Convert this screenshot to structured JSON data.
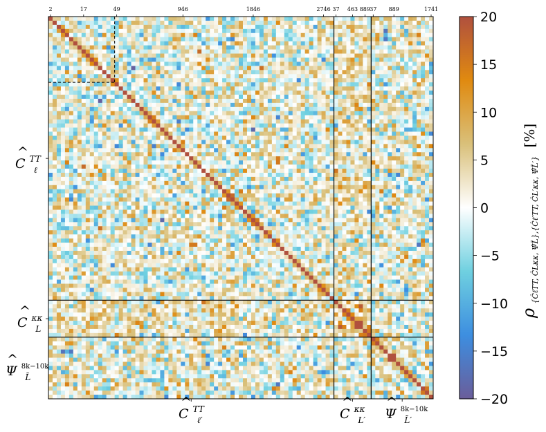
{
  "chart_data": {
    "type": "heatmap",
    "description_title": "",
    "top_ticks": [
      {
        "block": 0,
        "index": 0,
        "label": "2"
      },
      {
        "block": 0,
        "index": 8,
        "label": "17"
      },
      {
        "block": 0,
        "index": 16,
        "label": "49"
      },
      {
        "block": 0,
        "index": 32,
        "label": "946"
      },
      {
        "block": 0,
        "index": 49,
        "label": "1846"
      },
      {
        "block": 0,
        "index": 66,
        "label": "2746"
      },
      {
        "block": 1,
        "index": 0,
        "label": "37"
      },
      {
        "block": 1,
        "index": 4,
        "label": "463"
      },
      {
        "block": 1,
        "index": 7,
        "label": "889"
      },
      {
        "block": 2,
        "index": 0,
        "label": "37"
      },
      {
        "block": 2,
        "index": 5,
        "label": "889"
      },
      {
        "block": 2,
        "index": 14,
        "label": "1741"
      }
    ],
    "blocks": [
      {
        "name": "TT",
        "size": 69,
        "row_label": "Ĉℓ^TT",
        "col_label": "Ĉℓ′^TT"
      },
      {
        "name": "kk",
        "size": 9,
        "row_label": "ĈL^κκ",
        "col_label": "ĈL′^κκ"
      },
      {
        "name": "psi",
        "size": 15,
        "row_label": "Ψ̂L̃^8k−10k",
        "col_label": "Ψ̂L̃′^8k−10k"
      }
    ],
    "diagonal_value": 20,
    "colorbar": {
      "min": -20,
      "max": 20,
      "ticks": [
        "20",
        "15",
        "10",
        "5",
        "0",
        "−5",
        "−10",
        "−15",
        "−20"
      ],
      "label": "ρ{ĈℓTT, ĈLκκ, Ψ̂L̃},{Ĉℓ′TT, ĈL′κκ, Ψ̂L̃′} [%]",
      "unit": "[%]",
      "stops": [
        "#6a5d9a",
        "#3d8ee0",
        "#6fd0e0",
        "#ffffff",
        "#d9c07a",
        "#e08a10",
        "#b0503e"
      ]
    },
    "dashed_box_index": 16,
    "row_labels": {
      "tt": {
        "base": "C",
        "sup": "TT",
        "sub": "ℓ"
      },
      "kk": {
        "base": "C",
        "sup": "κκ",
        "sub": "L"
      },
      "psi": {
        "base": "Ψ",
        "sup": "8k−10k",
        "sub": "L̃"
      }
    },
    "col_labels": {
      "tt": {
        "base": "C",
        "sup": "TT",
        "sub": "ℓ′"
      },
      "kk": {
        "base": "C",
        "sup": "κκ",
        "sub": "L′"
      },
      "psi": {
        "base": "Ψ",
        "sup": "8k−10k",
        "sub": "L̃′"
      }
    },
    "cb_label_parts": {
      "rho": "ρ",
      "subscript": "{ĈℓTT, ĈLκκ, Ψ̂L̃},{Ĉℓ′TT, ĈL′κκ, Ψ̂L̃′}",
      "unit": "[%]"
    }
  }
}
